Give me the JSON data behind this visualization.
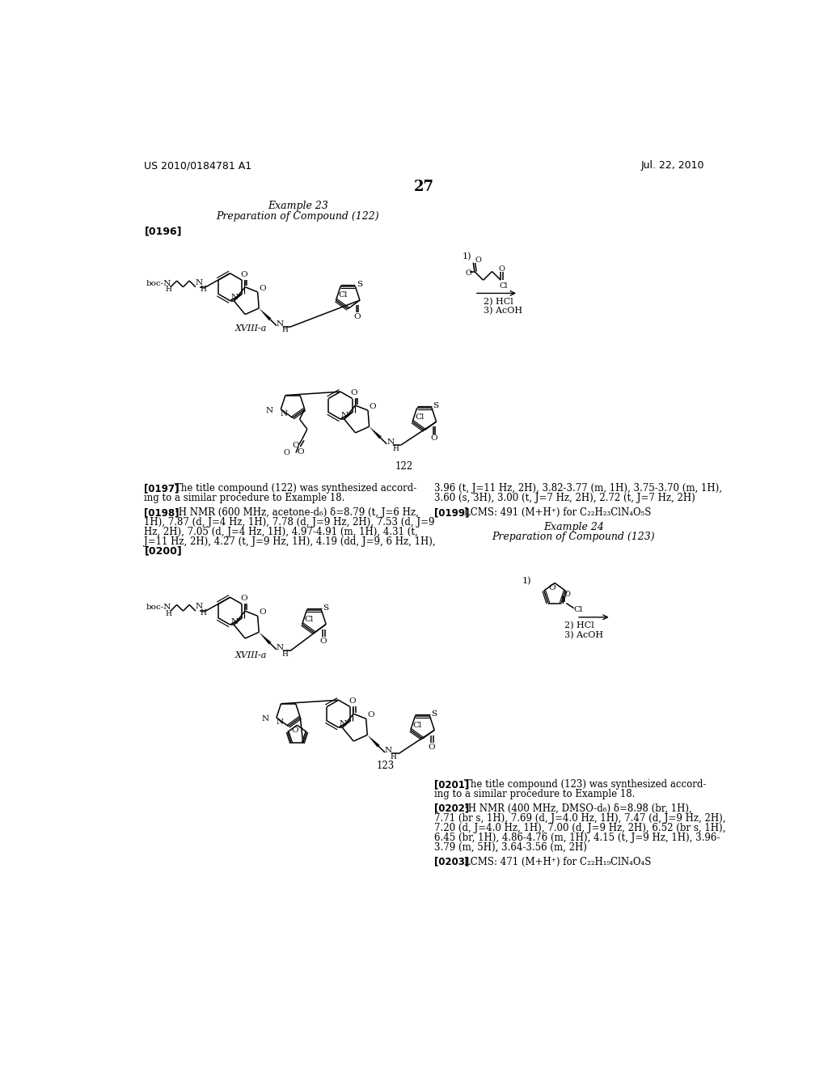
{
  "bg": "#ffffff",
  "header_left": "US 2010/0184781 A1",
  "header_right": "Jul. 22, 2010",
  "page_num": "27",
  "ex23_l1": "Example 23",
  "ex23_l2": "Preparation of Compound (122)",
  "tag0196": "[0196]",
  "label_xviiia": "XVIII-a",
  "label_122": "122",
  "tag0197": "[0197]",
  "t0197": "The title compound (122) was synthesized accord-",
  "t0197b": "ing to a similar procedure to Example 18.",
  "tag0198": "[0198]",
  "t0198a": "¹H NMR (600 MHz, acetone-d₆) δ=8.79 (t, J=6 Hz,",
  "t0198b": "1H), 7.87 (d, J=4 Hz, 1H), 7.78 (d, J=9 Hz, 2H), 7.53 (d, J=9",
  "t0198c": "Hz, 2H), 7.05 (d, J=4 Hz, 1H), 4.97-4.91 (m, 1H), 4.31 (t,",
  "t0198d": "J=11 Hz, 2H), 4.27 (t, J=9 Hz, 1H), 4.19 (dd, J=9, 6 Hz, 1H),",
  "t0198e": "3.96 (t, J=11 Hz, 2H), 3.82-3.77 (m, 1H), 3.75-3.70 (m, 1H),",
  "t0198f": "3.60 (s, 3H), 3.00 (t, J=7 Hz, 2H), 2.72 (t, J=7 Hz, 2H)",
  "tag0199": "[0199]",
  "t0199": "LCMS: 491 (M+H⁺) for C₂₂H₂₃ClN₄O₅S",
  "ex24_l1": "Example 24",
  "ex24_l2": "Preparation of Compound (123)",
  "tag0200": "[0200]",
  "label_123": "123",
  "tag0201": "[0201]",
  "t0201": "The title compound (123) was synthesized accord-",
  "t0201b": "ing to a similar procedure to Example 18.",
  "tag0202": "[0202]",
  "t0202a": "¹H NMR (400 MHz, DMSO-d₆) δ=8.98 (br, 1H),",
  "t0202b": "7.71 (br s, 1H), 7.69 (d, J=4.0 Hz, 1H), 7.47 (d, J=9 Hz, 2H),",
  "t0202c": "7.20 (d, J=4.0 Hz, 1H), 7.00 (d, J=9 Hz, 2H), 6.52 (br s, 1H),",
  "t0202d": "6.45 (br, 1H), 4.86-4.76 (m, 1H), 4.15 (t, J=9 Hz, 1H), 3.96-",
  "t0202e": "3.79 (m, 5H), 3.64-3.56 (m, 2H)",
  "tag0203": "[0203]",
  "t0203": "LCMS: 471 (M+H⁺) for C₂₂H₁₉ClN₄O₄S"
}
